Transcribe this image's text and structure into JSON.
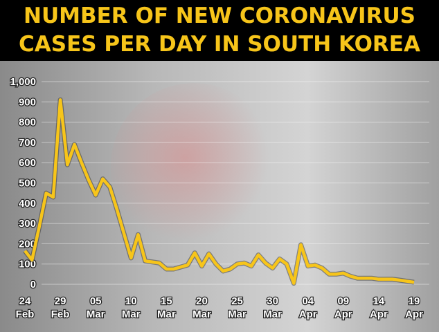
{
  "chart_data": {
    "type": "line",
    "title_lines": [
      "NUMBER OF NEW CORONAVIRUS",
      "CASES PER DAY IN SOUTH KOREA"
    ],
    "categories": [
      "24 Feb",
      null,
      null,
      null,
      null,
      "29 Feb",
      null,
      null,
      null,
      null,
      "05 Mar",
      null,
      null,
      null,
      null,
      "10 Mar",
      null,
      null,
      null,
      null,
      "15 Mar",
      null,
      null,
      null,
      null,
      "20 Mar",
      null,
      null,
      null,
      null,
      "25 Mar",
      null,
      null,
      null,
      null,
      "30 Mar",
      null,
      null,
      null,
      null,
      "04 Apr",
      null,
      null,
      null,
      null,
      "09 Apr",
      null,
      null,
      null,
      null,
      "14 Apr",
      null,
      null,
      null,
      null,
      "19 Apr"
    ],
    "values": [
      165,
      120,
      280,
      450,
      430,
      910,
      590,
      690,
      600,
      515,
      440,
      520,
      480,
      370,
      250,
      130,
      245,
      115,
      110,
      105,
      75,
      75,
      85,
      95,
      155,
      90,
      150,
      100,
      65,
      75,
      100,
      105,
      90,
      145,
      105,
      80,
      125,
      100,
      5,
      195,
      90,
      95,
      80,
      50,
      50,
      55,
      40,
      30,
      30,
      30,
      25,
      25,
      25,
      20,
      15,
      10
    ],
    "color": "#f7c51a",
    "ylim": [
      0,
      1000
    ],
    "yticks": [
      0,
      100,
      200,
      300,
      400,
      500,
      600,
      700,
      800,
      900,
      {
        "value": 1000,
        "label": "1,000"
      }
    ],
    "grid": true
  }
}
